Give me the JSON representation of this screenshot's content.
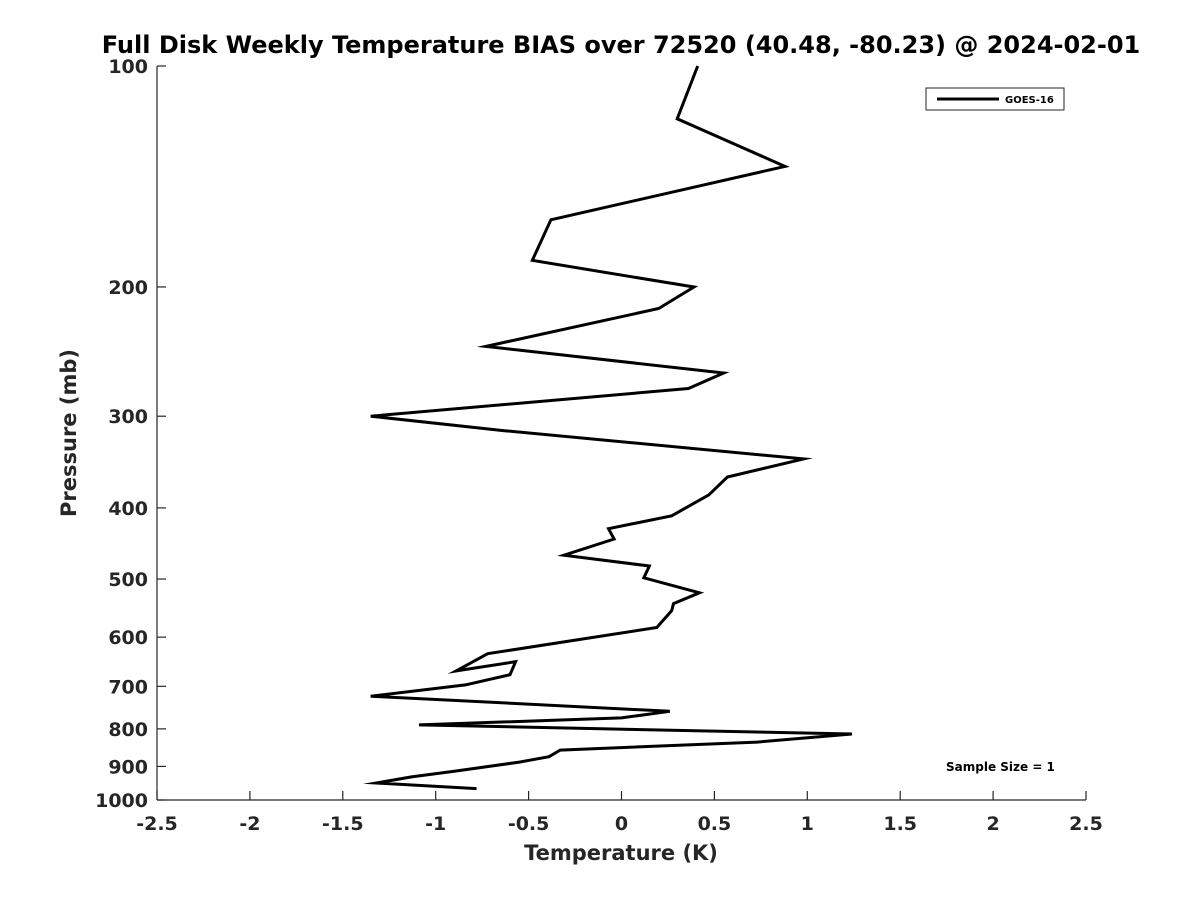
{
  "chart_data": {
    "type": "line",
    "title": "Full Disk Weekly Temperature BIAS over 72520 (40.48, -80.23) @ 2024-02-01",
    "xlabel": "Temperature (K)",
    "ylabel": "Pressure (mb)",
    "xlim": [
      -2.5,
      2.5
    ],
    "ylim": [
      100,
      1000
    ],
    "y_scale": "log",
    "y_reversed": true,
    "grid": false,
    "x_ticks": [
      -2.5,
      -2,
      -1.5,
      -1,
      -0.5,
      0,
      0.5,
      1,
      1.5,
      2,
      2.5
    ],
    "x_tick_labels": [
      "-2.5",
      "-2",
      "-1.5",
      "-1",
      "-0.5",
      "0",
      "0.5",
      "1",
      "1.5",
      "2",
      "2.5"
    ],
    "y_ticks": [
      100,
      200,
      300,
      400,
      500,
      600,
      700,
      800,
      900,
      1000
    ],
    "y_tick_labels": [
      "100",
      "200",
      "300",
      "400",
      "500",
      "600",
      "700",
      "800",
      "900",
      "1000"
    ],
    "legend": {
      "placement": "top-right",
      "entries": [
        "GOES-16"
      ]
    },
    "annotation": "Sample Size = 1",
    "series": [
      {
        "name": "GOES-16",
        "color": "#000000",
        "x": [
          0.41,
          0.3,
          0.88,
          -0.38,
          -0.48,
          0.39,
          0.2,
          -0.73,
          0.55,
          0.36,
          -1.35,
          -0.63,
          0.98,
          0.57,
          0.47,
          0.27,
          -0.07,
          -0.04,
          -0.31,
          0.15,
          0.12,
          0.42,
          0.28,
          0.27,
          0.19,
          -0.72,
          -0.89,
          -0.57,
          -0.6,
          -0.84,
          -1.35,
          0.26,
          0.0,
          -1.09,
          1.24,
          0.73,
          -0.33,
          -0.39,
          -0.55,
          -0.89,
          -1.13,
          -1.32,
          -0.78
        ],
        "y": [
          100,
          118,
          137,
          162,
          184,
          200,
          214,
          241,
          262,
          275,
          300,
          314,
          343,
          363,
          384,
          410,
          427,
          441,
          464,
          480,
          498,
          522,
          540,
          552,
          582,
          632,
          667,
          648,
          675,
          697,
          722,
          757,
          773,
          790,
          813,
          834,
          855,
          873,
          888,
          913,
          930,
          948,
          965
        ]
      }
    ]
  }
}
